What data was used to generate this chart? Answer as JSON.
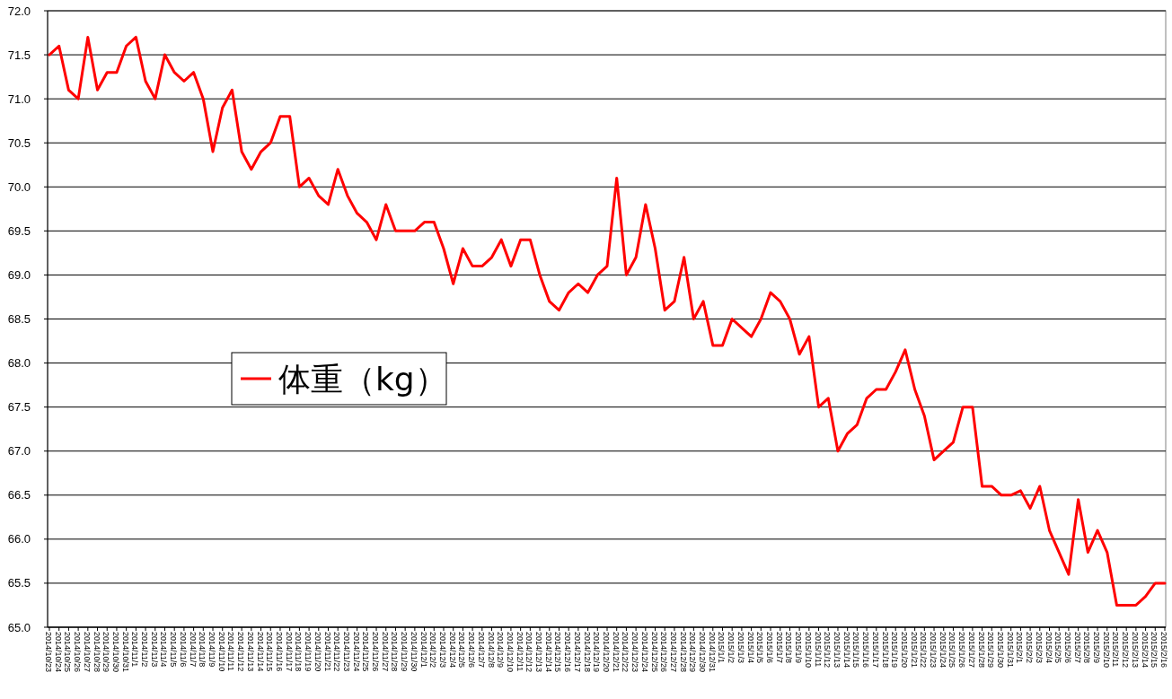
{
  "chart_data": {
    "type": "line",
    "categories": [
      "2014/10/23",
      "2014/10/24",
      "2014/10/25",
      "2014/10/26",
      "2014/10/27",
      "2014/10/28",
      "2014/10/29",
      "2014/10/30",
      "2014/10/31",
      "2014/11/1",
      "2014/11/2",
      "2014/11/3",
      "2014/11/4",
      "2014/11/5",
      "2014/11/6",
      "2014/11/7",
      "2014/11/8",
      "2014/11/9",
      "2014/11/10",
      "2014/11/11",
      "2014/11/12",
      "2014/11/13",
      "2014/11/14",
      "2014/11/15",
      "2014/11/16",
      "2014/11/17",
      "2014/11/18",
      "2014/11/19",
      "2014/11/20",
      "2014/11/21",
      "2014/11/22",
      "2014/11/23",
      "2014/11/24",
      "2014/11/25",
      "2014/11/26",
      "2014/11/27",
      "2014/11/28",
      "2014/11/29",
      "2014/11/30",
      "2014/12/1",
      "2014/12/2",
      "2014/12/3",
      "2014/12/4",
      "2014/12/5",
      "2014/12/6",
      "2014/12/7",
      "2014/12/8",
      "2014/12/9",
      "2014/12/10",
      "2014/12/11",
      "2014/12/12",
      "2014/12/13",
      "2014/12/14",
      "2014/12/15",
      "2014/12/16",
      "2014/12/17",
      "2014/12/18",
      "2014/12/19",
      "2014/12/20",
      "2014/12/21",
      "2014/12/22",
      "2014/12/23",
      "2014/12/24",
      "2014/12/25",
      "2014/12/26",
      "2014/12/27",
      "2014/12/28",
      "2014/12/29",
      "2014/12/30",
      "2014/12/31",
      "2015/1/1",
      "2015/1/2",
      "2015/1/3",
      "2015/1/4",
      "2015/1/5",
      "2015/1/6",
      "2015/1/7",
      "2015/1/8",
      "2015/1/9",
      "2015/1/10",
      "2015/1/11",
      "2015/1/12",
      "2015/1/13",
      "2015/1/14",
      "2015/1/15",
      "2015/1/16",
      "2015/1/17",
      "2015/1/18",
      "2015/1/19",
      "2015/1/20",
      "2015/1/21",
      "2015/1/22",
      "2015/1/23",
      "2015/1/24",
      "2015/1/25",
      "2015/1/26",
      "2015/1/27",
      "2015/1/28",
      "2015/1/29",
      "2015/1/30",
      "2015/1/31",
      "2015/2/1",
      "2015/2/2",
      "2015/2/3",
      "2015/2/4",
      "2015/2/5",
      "2015/2/6",
      "2015/2/7",
      "2015/2/8",
      "2015/2/9",
      "2015/2/10",
      "2015/2/11",
      "2015/2/12",
      "2015/2/13",
      "2015/2/14",
      "2015/2/15",
      "2015/2/16"
    ],
    "series": [
      {
        "name": "体重（kg）",
        "color": "#ff0000",
        "values": [
          71.5,
          71.6,
          71.1,
          71.0,
          71.7,
          71.1,
          71.3,
          71.3,
          71.6,
          71.7,
          71.2,
          71.0,
          71.5,
          71.3,
          71.2,
          71.3,
          71.0,
          70.4,
          70.9,
          71.1,
          70.4,
          70.2,
          70.4,
          70.5,
          70.8,
          70.8,
          70.0,
          70.1,
          69.9,
          69.8,
          70.2,
          69.9,
          69.7,
          69.6,
          69.4,
          69.8,
          69.5,
          69.5,
          69.5,
          69.6,
          69.6,
          69.3,
          68.9,
          69.3,
          69.1,
          69.1,
          69.2,
          69.4,
          69.1,
          69.4,
          69.4,
          69.0,
          68.7,
          68.6,
          68.8,
          68.9,
          68.8,
          69.0,
          69.1,
          70.1,
          69.0,
          69.2,
          69.8,
          69.3,
          68.6,
          68.7,
          69.2,
          68.5,
          68.7,
          68.2,
          68.2,
          68.5,
          68.4,
          68.3,
          68.5,
          68.8,
          68.7,
          68.5,
          68.1,
          68.3,
          67.5,
          67.6,
          67.0,
          67.2,
          67.3,
          67.6,
          67.7,
          67.7,
          67.9,
          68.15,
          67.7,
          67.4,
          66.9,
          67.0,
          67.1,
          67.5,
          67.5,
          66.6,
          66.6,
          66.5,
          66.5,
          66.55,
          66.35,
          66.6,
          66.1,
          65.85,
          65.6,
          66.45,
          65.85,
          66.1,
          65.85,
          65.25,
          65.25,
          65.25,
          65.35,
          65.5,
          65.5
        ]
      }
    ],
    "ylim": [
      65,
      72
    ],
    "yticks": [
      {
        "value": 65,
        "label": "65.0"
      },
      {
        "value": 65.5,
        "label": "65.5"
      },
      {
        "value": 66,
        "label": "66.0"
      },
      {
        "value": 66.5,
        "label": "66.5"
      },
      {
        "value": 67,
        "label": "67.0"
      },
      {
        "value": 67.5,
        "label": "67.5"
      },
      {
        "value": 68,
        "label": "68.0"
      },
      {
        "value": 68.5,
        "label": "68.5"
      },
      {
        "value": 69,
        "label": "69.0"
      },
      {
        "value": 69.5,
        "label": "69.5"
      },
      {
        "value": 70,
        "label": "70.0"
      },
      {
        "value": 70.5,
        "label": "70.5"
      },
      {
        "value": 71,
        "label": "71.0"
      },
      {
        "value": 71.5,
        "label": "71.5"
      },
      {
        "value": 72,
        "label": "72.0"
      }
    ],
    "grid": "y",
    "legend": "left",
    "marker": "none",
    "line_style": "solid"
  }
}
